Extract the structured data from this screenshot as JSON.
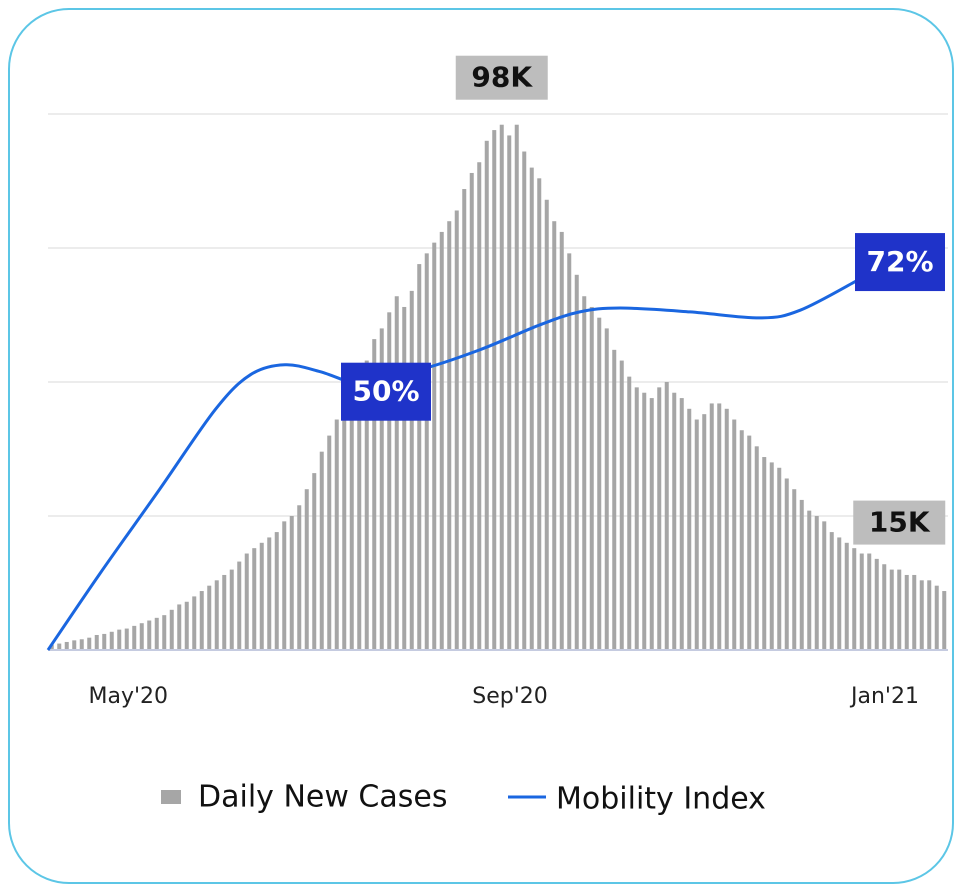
{
  "chart_data": {
    "type": "bar",
    "values": [
      1,
      1.2,
      1.5,
      1.8,
      2,
      2.3,
      2.8,
      3,
      3.4,
      3.8,
      4,
      4.5,
      5,
      5.5,
      6,
      6.5,
      7.5,
      8.5,
      9,
      10,
      11,
      12,
      13,
      14,
      15,
      16.5,
      18,
      19,
      20,
      21,
      22,
      24,
      25,
      27,
      30,
      33,
      37,
      40,
      43,
      46,
      48,
      50,
      54,
      58,
      60,
      63,
      66,
      64,
      67,
      72,
      74,
      76,
      78,
      80,
      82,
      86,
      89,
      91,
      95,
      97,
      98,
      96,
      98,
      93,
      90,
      88,
      84,
      80,
      78,
      74,
      70,
      66,
      64,
      62,
      60,
      56,
      54,
      51,
      49,
      48,
      47,
      49,
      50,
      48,
      47,
      45,
      43,
      44,
      46,
      46,
      45,
      43,
      41,
      40,
      38,
      36,
      35,
      34,
      32,
      30,
      28,
      26,
      25,
      24,
      22,
      21,
      20,
      19,
      18,
      18,
      17,
      16,
      15,
      15,
      14,
      14,
      13,
      13,
      12,
      11
    ],
    "value_labels": [
      null,
      null,
      null,
      null,
      null,
      null,
      null,
      null,
      null,
      null,
      null,
      null,
      null,
      null,
      null,
      null,
      null,
      null,
      null,
      null,
      null,
      null,
      null,
      null,
      null,
      null,
      null,
      null,
      null,
      null,
      null,
      null,
      null,
      null,
      null,
      null,
      null,
      null,
      null,
      null,
      null,
      null,
      null,
      null,
      null,
      null,
      null,
      null,
      null,
      null,
      null,
      null,
      null,
      null,
      null,
      null,
      null,
      null,
      null,
      null,
      "98K",
      null,
      null,
      null,
      null,
      null,
      null,
      null,
      null,
      null,
      null,
      null,
      null,
      null,
      null,
      null,
      null,
      null,
      null,
      null,
      null,
      null,
      null,
      null,
      null,
      null,
      null,
      null,
      null,
      null,
      null,
      null,
      null,
      null,
      null,
      null,
      null,
      null,
      null,
      null,
      null,
      null,
      null,
      null,
      null,
      null,
      null,
      null,
      null,
      null,
      null,
      null,
      null,
      "15K",
      null,
      null,
      null,
      null,
      null,
      null
    ],
    "name": "Daily New Cases",
    "color": "#a6a6a6",
    "line": {
      "name": "Mobility Index",
      "color": "#1a66e0",
      "axis": "y2",
      "x": [
        0,
        6.9,
        14.9,
        22.3,
        27,
        31.6,
        36.3,
        41.6,
        44,
        49.6,
        57.6,
        65.6,
        70.9,
        76.3,
        85.6,
        95,
        100.3,
        108
      ],
      "values": [
        -14,
        3.7,
        23.4,
        41.9,
        50,
        52.3,
        50.7,
        47.7,
        50,
        51.2,
        55.8,
        61.6,
        64.6,
        65.5,
        64.6,
        63.2,
        65,
        72
      ],
      "value_labels": [
        null,
        null,
        null,
        null,
        null,
        null,
        null,
        null,
        "50%",
        null,
        null,
        null,
        null,
        null,
        null,
        null,
        null,
        "72%"
      ]
    },
    "xlim": [
      0,
      120
    ],
    "xticks": [
      {
        "value": 10.7,
        "label": "May'20"
      },
      {
        "value": 61.6,
        "label": "Sep'20"
      },
      {
        "value": 111.6,
        "label": "Jan'21"
      }
    ],
    "ylim": [
      0,
      100
    ],
    "yticks": [
      25,
      50,
      75,
      100
    ],
    "y2lim": [
      -14,
      112
    ],
    "grid": true
  }
}
